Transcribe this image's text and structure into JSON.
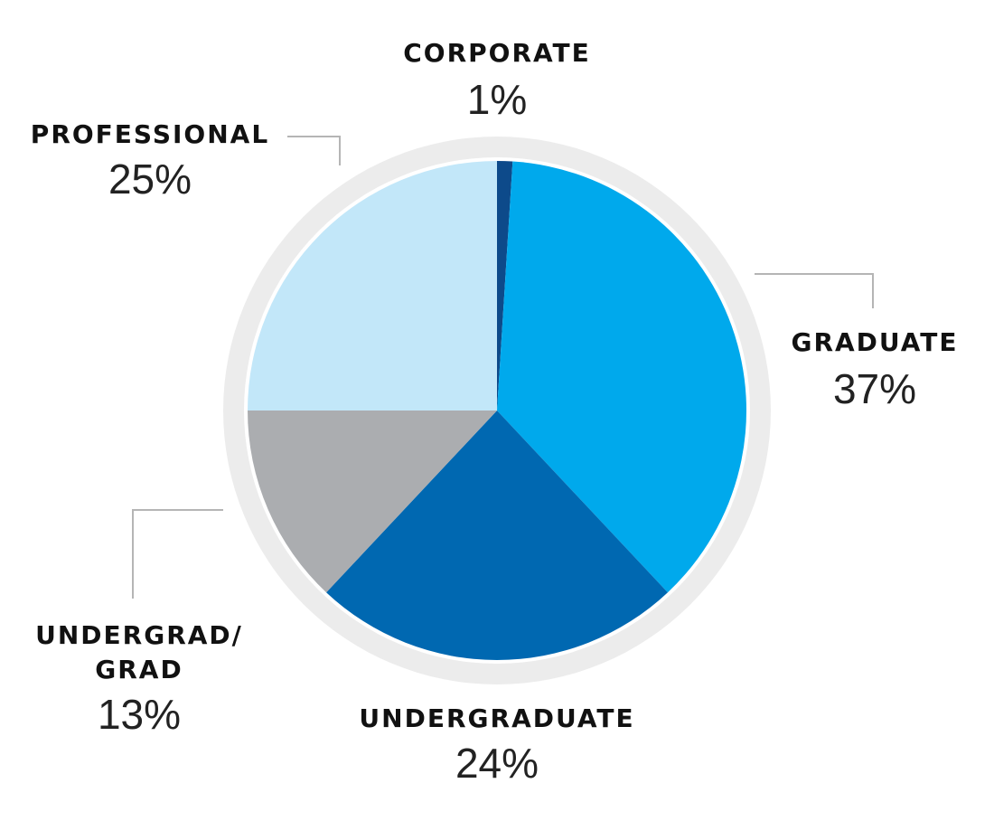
{
  "chart_data": {
    "type": "pie",
    "title": "",
    "legend": "none",
    "slices": [
      {
        "label": "CORPORATE",
        "label_lines": [
          "CORPORATE"
        ],
        "value": 1,
        "value_label": "1%",
        "color": "#0d4a8a"
      },
      {
        "label": "GRADUATE",
        "label_lines": [
          "GRADUATE"
        ],
        "value": 37,
        "value_label": "37%",
        "color": "#00a9ec"
      },
      {
        "label": "UNDERGRADUATE",
        "label_lines": [
          "UNDERGRADUATE"
        ],
        "value": 24,
        "value_label": "24%",
        "color": "#0068b1"
      },
      {
        "label": "UNDERGRAD/ GRAD",
        "label_lines": [
          "UNDERGRAD/",
          "GRAD"
        ],
        "value": 13,
        "value_label": "13%",
        "color": "#abadb0"
      },
      {
        "label": "PROFESSIONAL",
        "label_lines": [
          "PROFESSIONAL"
        ],
        "value": 25,
        "value_label": "25%",
        "color": "#c2e7f9"
      }
    ],
    "ring_color": "#ececec",
    "leader_color": "#b5b5b5"
  }
}
